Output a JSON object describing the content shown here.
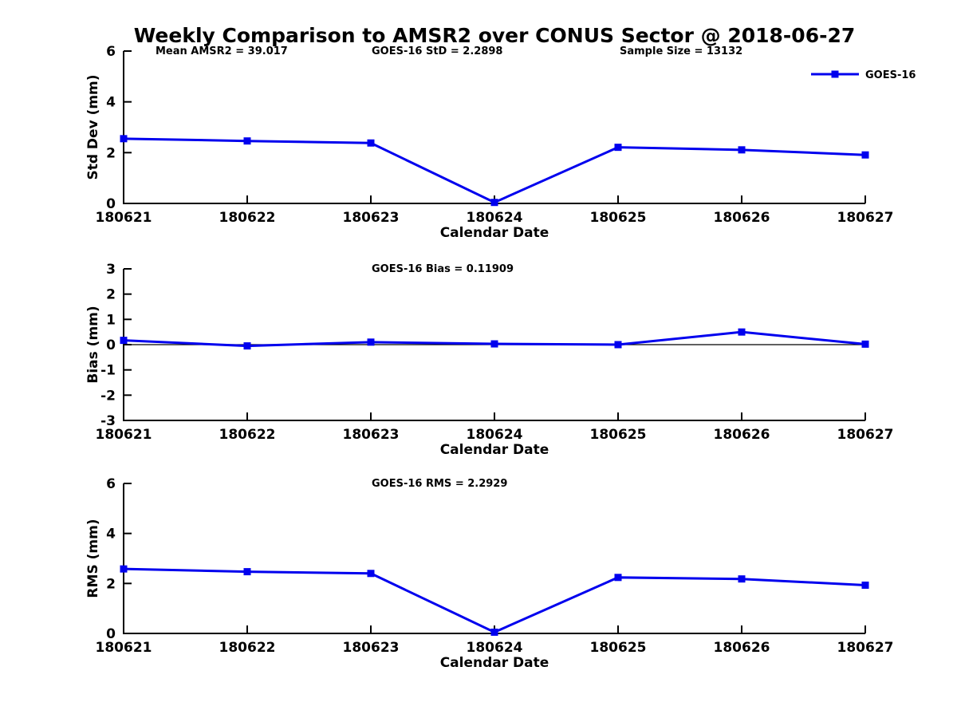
{
  "figure_title": "Weekly Comparison to AMSR2 over CONUS Sector @ 2018-06-27",
  "colors": {
    "series": "#0000EE",
    "axis": "#000000",
    "background": "#FFFFFF"
  },
  "categories": [
    "180621",
    "180622",
    "180623",
    "180624",
    "180625",
    "180626",
    "180627"
  ],
  "chart_data": [
    {
      "type": "line",
      "ylabel": "Std Dev (mm)",
      "xlabel": "Calendar Date",
      "ylim": [
        0,
        6
      ],
      "yticks": [
        0,
        2,
        4,
        6
      ],
      "grid": false,
      "annotations": [
        "Mean AMSR2 = 39.017",
        "GOES-16 StD = 2.2898",
        "Sample Size = 13132"
      ],
      "legend": {
        "label": "GOES-16",
        "position": "top-right"
      },
      "series": [
        {
          "name": "GOES-16",
          "marker": "square",
          "values": [
            2.55,
            2.46,
            2.38,
            0.04,
            2.21,
            2.11,
            1.91
          ]
        }
      ]
    },
    {
      "type": "line",
      "ylabel": "Bias (mm)",
      "xlabel": "Calendar Date",
      "ylim": [
        -3,
        3
      ],
      "yticks": [
        -3,
        -2,
        -1,
        0,
        1,
        2,
        3
      ],
      "grid": false,
      "zero_line": true,
      "annotations": [
        "GOES-16 Bias  = 0.11909"
      ],
      "series": [
        {
          "name": "GOES-16",
          "marker": "square",
          "values": [
            0.17,
            -0.05,
            0.1,
            0.03,
            0.0,
            0.5,
            0.02
          ]
        }
      ]
    },
    {
      "type": "line",
      "ylabel": "RMS (mm)",
      "xlabel": "Calendar Date",
      "ylim": [
        0,
        6
      ],
      "yticks": [
        0,
        2,
        4,
        6
      ],
      "grid": false,
      "annotations": [
        "GOES-16 RMS = 2.2929"
      ],
      "series": [
        {
          "name": "GOES-16",
          "marker": "square",
          "values": [
            2.58,
            2.47,
            2.4,
            0.05,
            2.24,
            2.18,
            1.93
          ]
        }
      ]
    }
  ]
}
